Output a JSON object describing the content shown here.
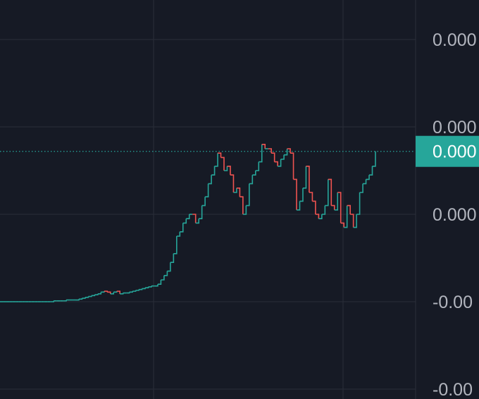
{
  "colors": {
    "background": "#161a25",
    "grid": "#2a2e39",
    "up": "#26a69a",
    "down": "#ef5350",
    "axis_text": "#b2b5be",
    "price_label_bg": "#26a69a",
    "price_label_text": "#ffffff",
    "price_line": "#26a69a"
  },
  "chart_data": {
    "type": "line",
    "title": "",
    "xlabel": "",
    "ylabel": "",
    "grid": true,
    "legend": "none",
    "y_axis_position": "right",
    "y_tick_labels": [
      "0.000",
      "0.000",
      "0.000",
      "-0.00",
      "-0.00"
    ],
    "y_tick_values": [
      4,
      3,
      2,
      1,
      0
    ],
    "ylim": [
      0,
      4.25
    ],
    "current_price_label": "0.000",
    "current_price_value": 2.72,
    "series": [
      {
        "values": [
          1.0,
          1.0,
          1.0,
          1.0,
          1.0,
          1.0,
          1.0,
          1.0,
          1.0,
          1.0,
          1.0,
          1.0,
          1.0,
          1.0,
          1.0,
          1.0,
          1.0,
          1.01,
          1.01,
          1.01,
          1.01,
          1.02,
          1.02,
          1.02,
          1.02,
          1.03,
          1.04,
          1.05,
          1.06,
          1.07,
          1.08,
          1.09,
          1.11,
          1.12,
          1.11,
          1.09,
          1.11,
          1.12,
          1.09,
          1.1,
          1.1,
          1.11,
          1.12,
          1.13,
          1.14,
          1.15,
          1.16,
          1.17,
          1.18,
          1.18,
          1.2,
          1.25,
          1.3,
          1.35,
          1.45,
          1.55,
          1.75,
          1.8,
          1.9,
          1.95,
          2.0,
          2.0,
          1.9,
          1.95,
          2.1,
          2.2,
          2.35,
          2.45,
          2.55,
          2.7,
          2.65,
          2.5,
          2.55,
          2.45,
          2.25,
          2.3,
          2.2,
          2.0,
          2.1,
          2.35,
          2.45,
          2.5,
          2.6,
          2.8,
          2.75,
          2.75,
          2.7,
          2.6,
          2.55,
          2.63,
          2.68,
          2.75,
          2.7,
          2.4,
          2.05,
          2.15,
          2.3,
          2.55,
          2.25,
          2.15,
          2.0,
          1.95,
          2.0,
          2.1,
          2.4,
          2.1,
          2.05,
          2.25,
          1.9,
          1.85,
          2.1,
          2.0,
          1.85,
          2.0,
          2.25,
          2.35,
          2.4,
          2.45,
          2.55,
          2.72
        ]
      }
    ]
  }
}
